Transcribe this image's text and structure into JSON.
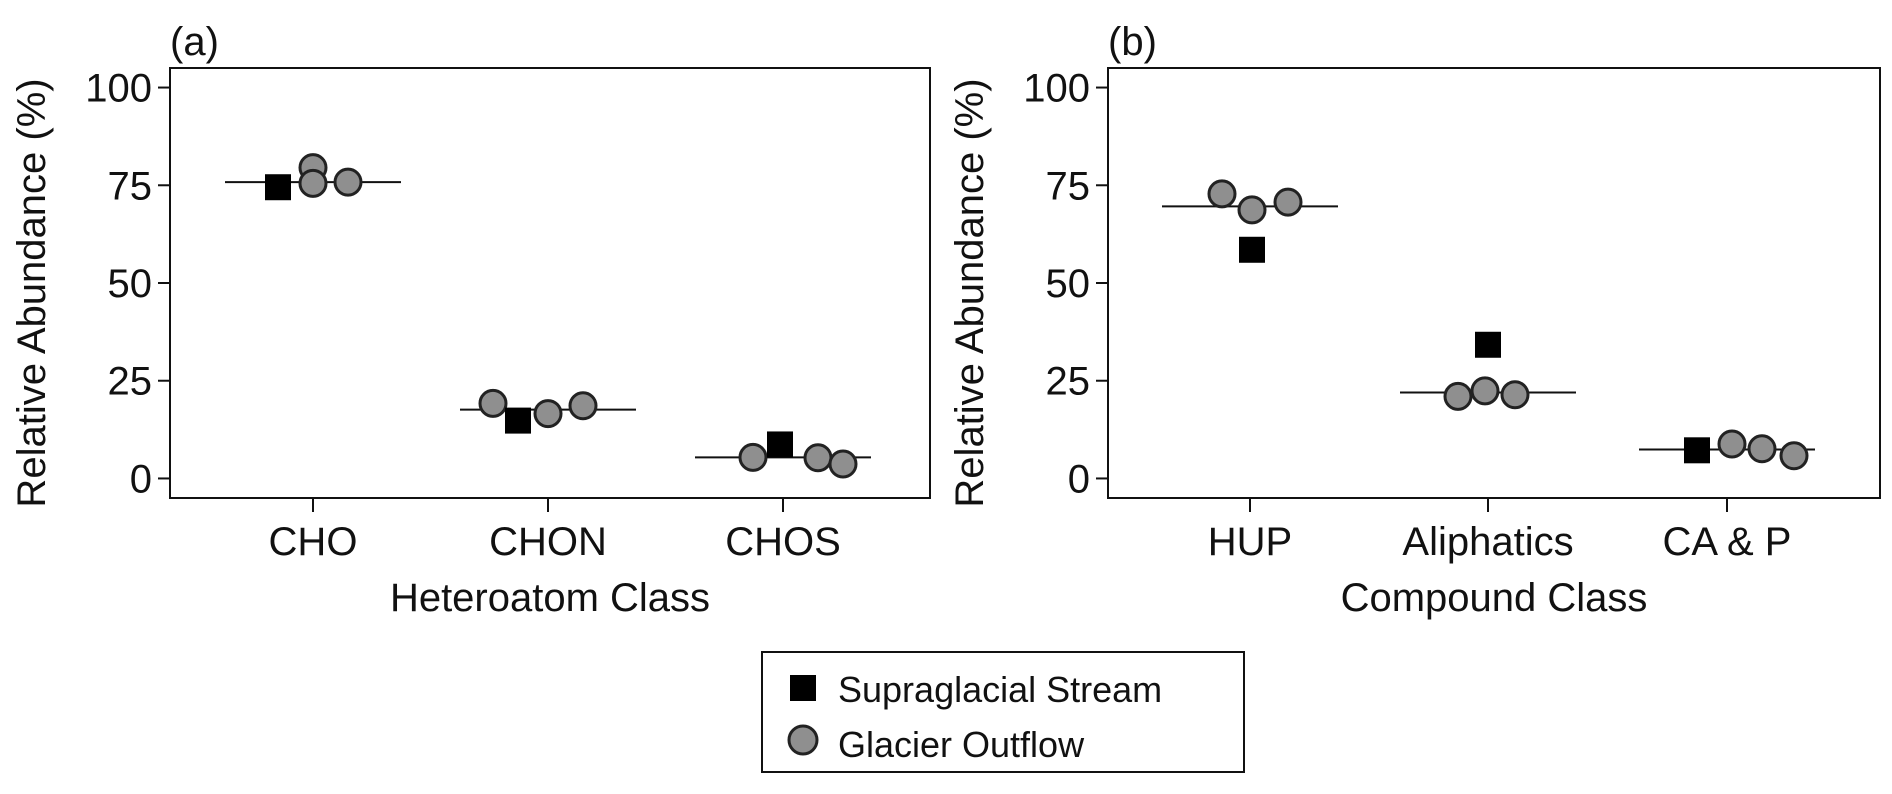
{
  "chart_data": [
    {
      "panel_label": "(a)",
      "type": "scatter",
      "xlabel": "Heteroatom Class",
      "ylabel": "Relative Abundance (%)",
      "categories": [
        "CHO",
        "CHON",
        "CHOS"
      ],
      "ylim": [
        -5,
        105
      ],
      "yticks": [
        0,
        25,
        50,
        75,
        100
      ],
      "series": [
        {
          "name": "Supraglacial Stream",
          "marker": "square",
          "color": "#000000",
          "points": [
            {
              "category": "CHO",
              "y": 74.5
            },
            {
              "category": "CHON",
              "y": 14.8
            },
            {
              "category": "CHOS",
              "y": 8.7
            }
          ]
        },
        {
          "name": "Glacier Outflow",
          "marker": "circle",
          "color": "#8f8f8f",
          "points": [
            {
              "category": "CHO",
              "y": 79.5
            },
            {
              "category": "CHO",
              "y": 75.5
            },
            {
              "category": "CHO",
              "y": 75.8
            },
            {
              "category": "CHON",
              "y": 19.2
            },
            {
              "category": "CHON",
              "y": 16.6
            },
            {
              "category": "CHON",
              "y": 18.6
            },
            {
              "category": "CHOS",
              "y": 5.4
            },
            {
              "category": "CHOS",
              "y": 5.3
            },
            {
              "category": "CHOS",
              "y": 3.7
            }
          ]
        }
      ],
      "means": [
        75.8,
        17.6,
        5.4
      ]
    },
    {
      "panel_label": "(b)",
      "type": "scatter",
      "xlabel": "Compound Class",
      "ylabel": "Relative Abundance (%)",
      "categories": [
        "HUP",
        "Aliphatics",
        "CA & P"
      ],
      "ylim": [
        -5,
        105
      ],
      "yticks": [
        0,
        25,
        50,
        75,
        100
      ],
      "series": [
        {
          "name": "Supraglacial Stream",
          "marker": "square",
          "color": "#000000",
          "points": [
            {
              "category": "HUP",
              "y": 58.5
            },
            {
              "category": "Aliphatics",
              "y": 34.2
            },
            {
              "category": "CA & P",
              "y": 7.2
            }
          ]
        },
        {
          "name": "Glacier Outflow",
          "marker": "circle",
          "color": "#8f8f8f",
          "points": [
            {
              "category": "HUP",
              "y": 72.8
            },
            {
              "category": "HUP",
              "y": 68.7
            },
            {
              "category": "HUP",
              "y": 70.7
            },
            {
              "category": "Aliphatics",
              "y": 21.0
            },
            {
              "category": "Aliphatics",
              "y": 22.4
            },
            {
              "category": "Aliphatics",
              "y": 21.4
            },
            {
              "category": "CA & P",
              "y": 8.8
            },
            {
              "category": "CA & P",
              "y": 7.6
            },
            {
              "category": "CA & P",
              "y": 5.8
            }
          ]
        }
      ],
      "means": [
        69.6,
        22.0,
        7.4
      ]
    }
  ],
  "legend": {
    "items": [
      {
        "label": "Supraglacial Stream",
        "marker": "square"
      },
      {
        "label": "Glacier Outflow",
        "marker": "circle"
      }
    ]
  }
}
